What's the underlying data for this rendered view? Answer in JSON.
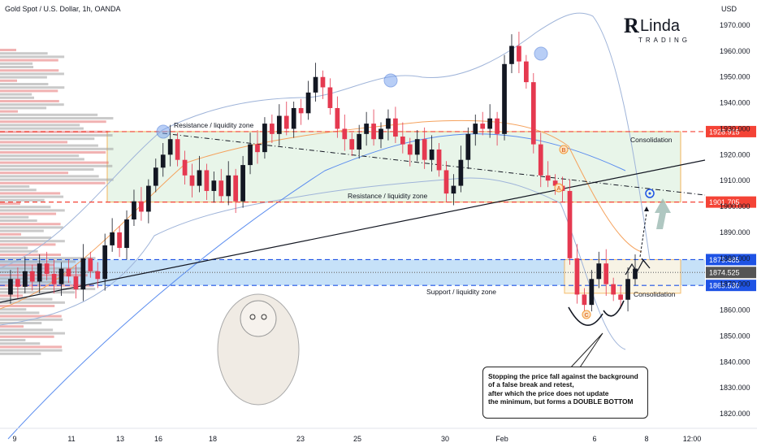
{
  "header": {
    "title": "Gold Spot / U.S. Dollar, 1h, OANDA",
    "currency": "USD"
  },
  "brand": {
    "name": "Linda",
    "subtitle": "TRADING"
  },
  "annotation_box": {
    "lines": [
      "Stopping the price fall against the background",
      "of a false break and retest,",
      "after which the price does not update",
      "the minimum, but forms a DOUBLE BOTTOM"
    ]
  },
  "colors": {
    "up": "#26a69a",
    "down": "#ef5350",
    "candle_up": "#131722",
    "candle_down": "#e53950",
    "resistance": "#f44336",
    "support": "#1e53e5",
    "zone_fill": "#e8f5e9",
    "support_fill": "#b3d7f5",
    "bollinger": "#9fb4d9",
    "ma": "#f5a25d",
    "trendline": "#131722"
  },
  "chart_data": {
    "type": "candlestick",
    "symbol": "Gold Spot / U.S. Dollar",
    "timeframe": "1h",
    "ylim": [
      1815,
      1980
    ],
    "y_ticks": [
      1820,
      1830,
      1840,
      1850,
      1860,
      1870,
      1880,
      1890,
      1900,
      1910,
      1920,
      1930,
      1940,
      1950,
      1960,
      1970
    ],
    "x_ticks": [
      "9",
      "11",
      "13",
      "16",
      "18",
      "23",
      "25",
      "30",
      "Feb",
      "6",
      "8",
      "12:00"
    ],
    "price_levels": [
      {
        "label": "1928.915",
        "value": 1928.915,
        "kind": "resistance"
      },
      {
        "label": "1901.705",
        "value": 1901.705,
        "kind": "resistance"
      },
      {
        "label": "1879.485",
        "value": 1879.485,
        "kind": "support"
      },
      {
        "label": "1874.525",
        "value": 1874.525,
        "kind": "current"
      },
      {
        "label": "1869.530",
        "value": 1869.53,
        "kind": "support"
      }
    ],
    "zones": [
      {
        "label": "Resistance / liquidity zone",
        "top": 1928.915,
        "bottom": 1901.705
      },
      {
        "label": "Support / liquidity zone",
        "top": 1879.485,
        "bottom": 1869.53
      }
    ],
    "labels": {
      "resistance_top": "Resistance / liquidity zone",
      "resistance_mid": "Resistance / liquidity zone",
      "support": "Support / liquidity zone",
      "consolidation_top": "Consolidation",
      "consolidation_bottom": "Consolidation"
    },
    "wave_labels": [
      "B",
      "A",
      "C"
    ],
    "price_path": [
      1866,
      1872,
      1869,
      1875,
      1871,
      1878,
      1874,
      1870,
      1876,
      1873,
      1868,
      1880,
      1875,
      1872,
      1885,
      1890,
      1884,
      1895,
      1902,
      1898,
      1908,
      1915,
      1920,
      1926,
      1918,
      1912,
      1908,
      1914,
      1906,
      1910,
      1904,
      1912,
      1902,
      1916,
      1924,
      1921,
      1932,
      1928,
      1935,
      1930,
      1938,
      1936,
      1944,
      1950,
      1946,
      1938,
      1930,
      1926,
      1922,
      1928,
      1932,
      1926,
      1930,
      1934,
      1927,
      1924,
      1920,
      1926,
      1918,
      1922,
      1914,
      1905,
      1908,
      1918,
      1928,
      1932,
      1930,
      1934,
      1928,
      1955,
      1962,
      1956,
      1948,
      1924,
      1912,
      1910,
      1908,
      1906,
      1880,
      1866,
      1862,
      1872,
      1878,
      1870,
      1866,
      1864,
      1872,
      1876
    ]
  }
}
